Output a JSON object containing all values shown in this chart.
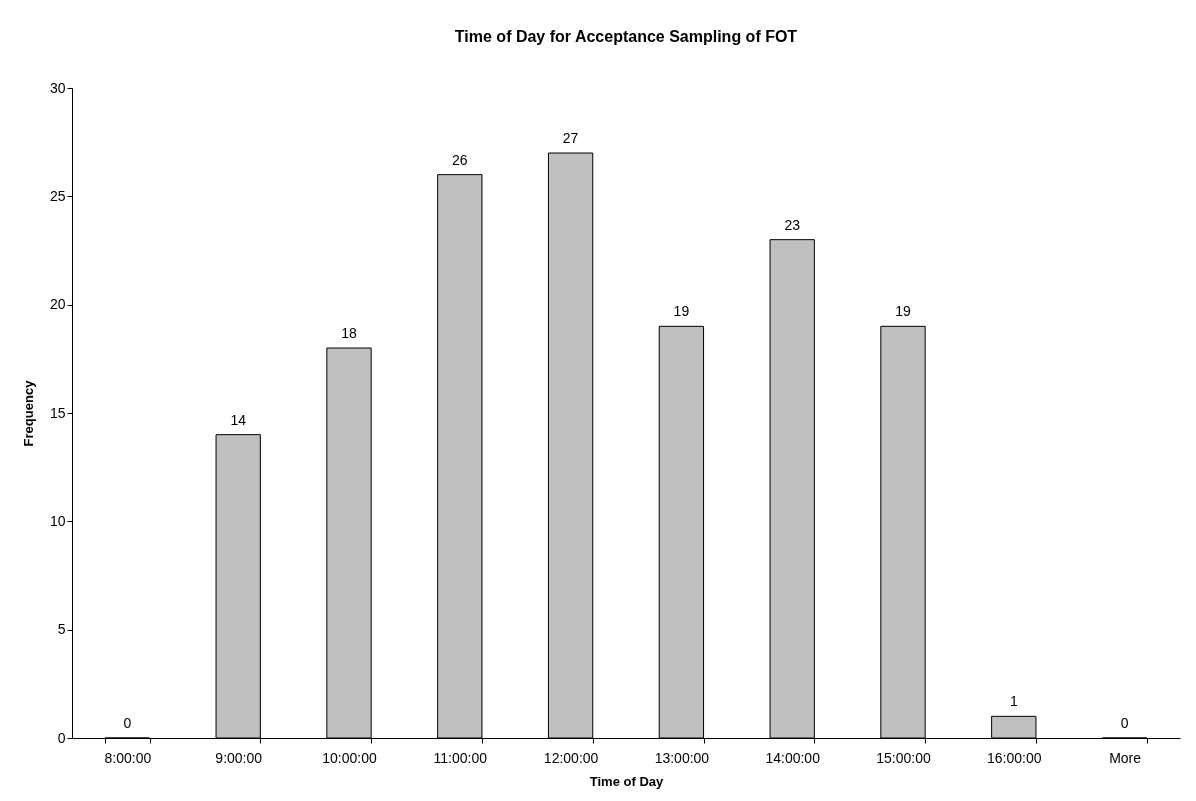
{
  "chart_data": {
    "type": "bar",
    "title": "Time of Day for Acceptance Sampling of FOT",
    "xlabel": "Time of Day",
    "ylabel": "Frequency",
    "categories": [
      "8:00:00",
      "9:00:00",
      "10:00:00",
      "11:00:00",
      "12:00:00",
      "13:00:00",
      "14:00:00",
      "15:00:00",
      "16:00:00",
      "More"
    ],
    "values": [
      0,
      14,
      18,
      26,
      27,
      19,
      23,
      19,
      1,
      0
    ],
    "color": "#c0c0c0",
    "ylim": [
      0,
      30
    ],
    "yticks": [
      0,
      5,
      10,
      15,
      20,
      25,
      30
    ],
    "data_labels": true
  }
}
